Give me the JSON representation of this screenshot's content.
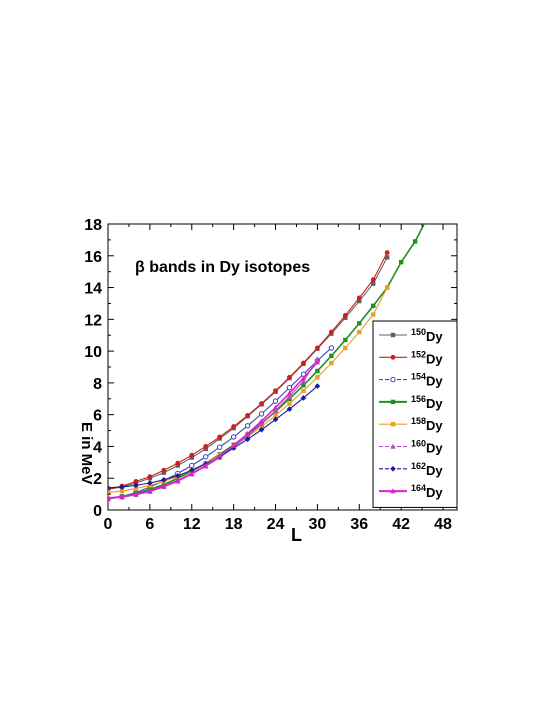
{
  "chart_data": {
    "type": "line",
    "title": "",
    "annotation": "β bands in Dy isotopes",
    "xlabel": "L",
    "ylabel": "E in MeV",
    "xlim": [
      0,
      50
    ],
    "ylim": [
      0,
      18
    ],
    "xticks": [
      0,
      6,
      12,
      18,
      24,
      30,
      36,
      42,
      48
    ],
    "yticks": [
      0,
      2,
      4,
      6,
      8,
      10,
      12,
      14,
      16,
      18
    ],
    "grid": false,
    "legend_position": "right",
    "series": [
      {
        "name": "150Dy",
        "mass": "150",
        "color": "#606060",
        "marker": "square",
        "x": [
          0,
          2,
          4,
          6,
          8,
          10,
          12,
          14,
          16,
          18,
          20,
          22,
          24,
          26,
          28,
          30,
          32,
          34,
          36,
          38,
          40
        ],
        "y": [
          1.3,
          1.45,
          1.7,
          2.0,
          2.35,
          2.8,
          3.3,
          3.85,
          4.5,
          5.15,
          5.9,
          6.65,
          7.45,
          8.3,
          9.2,
          10.15,
          11.1,
          12.1,
          13.15,
          14.25,
          15.9
        ]
      },
      {
        "name": "152Dy",
        "mass": "152",
        "color": "#cc2020",
        "marker": "circle",
        "x": [
          0,
          2,
          4,
          6,
          8,
          10,
          12,
          14,
          16,
          18,
          20,
          22,
          24,
          26,
          28,
          30,
          32,
          34,
          36,
          38,
          40
        ],
        "y": [
          1.3,
          1.5,
          1.8,
          2.1,
          2.5,
          2.95,
          3.45,
          4.0,
          4.6,
          5.25,
          5.95,
          6.7,
          7.5,
          8.35,
          9.25,
          10.2,
          11.2,
          12.25,
          13.35,
          14.5,
          16.2
        ]
      },
      {
        "name": "154Dy",
        "mass": "154",
        "color": "#4040c0",
        "marker": "open-circle",
        "x": [
          0,
          2,
          4,
          6,
          8,
          10,
          12,
          14,
          16,
          18,
          20,
          22,
          24,
          26,
          28,
          30,
          32
        ],
        "y": [
          0.7,
          0.85,
          1.1,
          1.45,
          1.85,
          2.3,
          2.8,
          3.35,
          3.95,
          4.6,
          5.3,
          6.05,
          6.85,
          7.7,
          8.55,
          9.4,
          10.2
        ]
      },
      {
        "name": "156Dy",
        "mass": "156",
        "color": "#1f8f1f",
        "marker": "square",
        "x": [
          0,
          2,
          4,
          6,
          8,
          10,
          12,
          14,
          16,
          18,
          20,
          22,
          24,
          26,
          28,
          30,
          32,
          34,
          36,
          38,
          40,
          42,
          44,
          46
        ],
        "y": [
          0.7,
          0.85,
          1.05,
          1.3,
          1.6,
          2.0,
          2.45,
          2.95,
          3.5,
          4.1,
          4.75,
          5.45,
          6.2,
          7.0,
          7.85,
          8.75,
          9.7,
          10.7,
          11.75,
          12.85,
          14.0,
          15.6,
          16.9,
          18.6
        ]
      },
      {
        "name": "158Dy",
        "mass": "158",
        "color": "#e8a020",
        "marker": "square",
        "x": [
          0,
          2,
          4,
          6,
          8,
          10,
          12,
          14,
          16,
          18,
          20,
          22,
          24,
          26,
          28,
          30,
          32,
          34,
          36,
          38,
          40
        ],
        "y": [
          1.1,
          1.2,
          1.35,
          1.55,
          1.8,
          2.1,
          2.5,
          2.95,
          3.45,
          4.0,
          4.6,
          5.25,
          5.95,
          6.7,
          7.5,
          8.35,
          9.25,
          10.2,
          11.2,
          12.3,
          14.0
        ]
      },
      {
        "name": "160Dy",
        "mass": "160",
        "color": "#b050c0",
        "marker": "triangle",
        "x": [
          0,
          2,
          4,
          6,
          8,
          10,
          12,
          14,
          16,
          18,
          20,
          22,
          24,
          26,
          28,
          30
        ],
        "y": [
          0.7,
          0.8,
          0.95,
          1.15,
          1.45,
          1.8,
          2.25,
          2.75,
          3.3,
          3.95,
          4.65,
          5.4,
          6.25,
          7.15,
          8.1,
          9.5
        ]
      },
      {
        "name": "162Dy",
        "mass": "162",
        "color": "#1a1aa0",
        "marker": "diamond",
        "x": [
          0,
          2,
          4,
          6,
          8,
          10,
          12,
          14,
          16,
          18,
          20,
          22,
          24,
          26,
          28,
          30
        ],
        "y": [
          1.4,
          1.45,
          1.55,
          1.7,
          1.9,
          2.15,
          2.5,
          2.9,
          3.35,
          3.9,
          4.45,
          5.05,
          5.7,
          6.35,
          7.05,
          7.8
        ]
      },
      {
        "name": "164Dy",
        "mass": "164",
        "color": "#e020d0",
        "marker": "triangle",
        "x": [
          0,
          2,
          4,
          6,
          8,
          10,
          12,
          14,
          16,
          18,
          20,
          22,
          24,
          26,
          28,
          30
        ],
        "y": [
          0.75,
          0.85,
          1.0,
          1.2,
          1.5,
          1.85,
          2.3,
          2.8,
          3.4,
          4.05,
          4.8,
          5.6,
          6.45,
          7.35,
          8.3,
          9.3
        ]
      }
    ]
  },
  "legend_suffix": "Dy"
}
